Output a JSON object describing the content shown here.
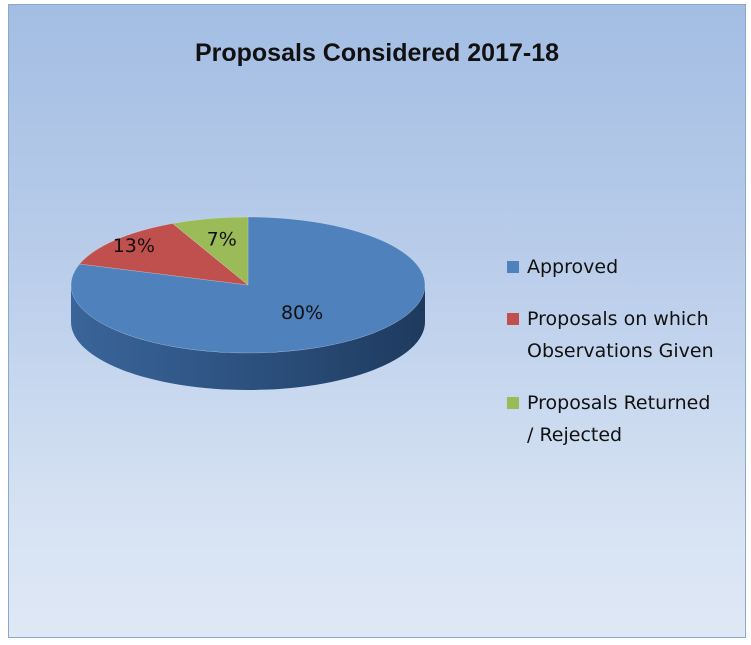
{
  "chart_data": {
    "type": "pie",
    "title": "Proposals Considered 2017-18",
    "categories": [
      "Approved",
      "Proposals on which Observations Given",
      "Proposals Returned / Rejected"
    ],
    "values": [
      80,
      13,
      7
    ],
    "value_labels": [
      "80%",
      "13%",
      "7%"
    ],
    "colors": [
      "#4f81bd",
      "#c0504d",
      "#9bbb59"
    ],
    "legend": {
      "placement": "right",
      "entries": [
        {
          "label_lines": [
            "Approved"
          ]
        },
        {
          "label_lines": [
            "Proposals on which",
            "Observations Given"
          ]
        },
        {
          "label_lines": [
            "Proposals Returned",
            "/ Rejected"
          ]
        }
      ]
    },
    "style": "3d"
  }
}
